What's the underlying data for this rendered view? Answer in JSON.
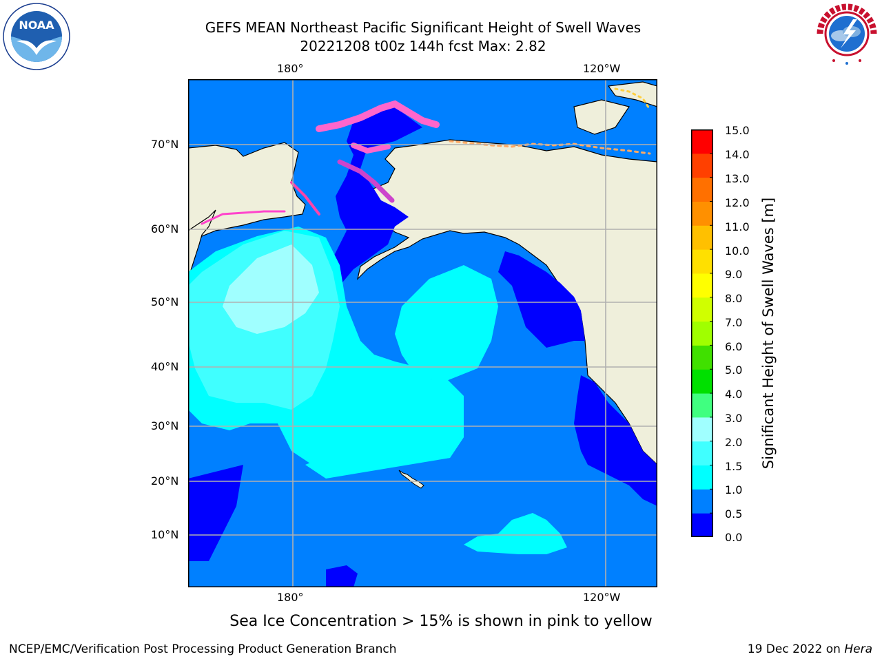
{
  "header": {
    "title_line1": "GEFS MEAN Northeast Pacific Significant Height of Swell Waves",
    "title_line2": "20221208 t00z 144h fcst   Max: 2.82"
  },
  "logos": {
    "left": {
      "name": "noaa-logo",
      "text": "NOAA"
    },
    "right": {
      "name": "nws-logo",
      "text": "NATIONAL WEATHER SERVICE"
    }
  },
  "map": {
    "lon_labels": [
      "180°",
      "120°W"
    ],
    "lat_labels": [
      "70°N",
      "60°N",
      "50°N",
      "40°N",
      "30°N",
      "20°N",
      "10°N"
    ],
    "colors": {
      "land": "#efefdb",
      "ocean_low": "#0080ff",
      "grid": "#b0b0b0"
    }
  },
  "colorbar": {
    "label": "Significant Height of Swell Waves [m]",
    "ticks": [
      "15.0",
      "14.0",
      "13.0",
      "12.0",
      "11.0",
      "10.0",
      "9.0",
      "8.0",
      "7.0",
      "6.0",
      "5.0",
      "4.0",
      "3.0",
      "2.0",
      "1.5",
      "1.0",
      "0.5",
      "0.0"
    ],
    "colors": [
      "#0000ff",
      "#0080ff",
      "#00ffff",
      "#40ffff",
      "#a0ffff",
      "#40ff80",
      "#00e000",
      "#40e000",
      "#a0ff00",
      "#d0ff00",
      "#ffff00",
      "#ffe000",
      "#ffc000",
      "#ff9000",
      "#ff7000",
      "#ff4000",
      "#ff0000"
    ]
  },
  "caption": "Sea Ice Concentration > 15% is shown in pink to yellow",
  "footer": {
    "left": "NCEP/EMC/Verification Post Processing Product Generation Branch",
    "right_prefix": "19 Dec 2022 on ",
    "right_host": "Hera"
  }
}
